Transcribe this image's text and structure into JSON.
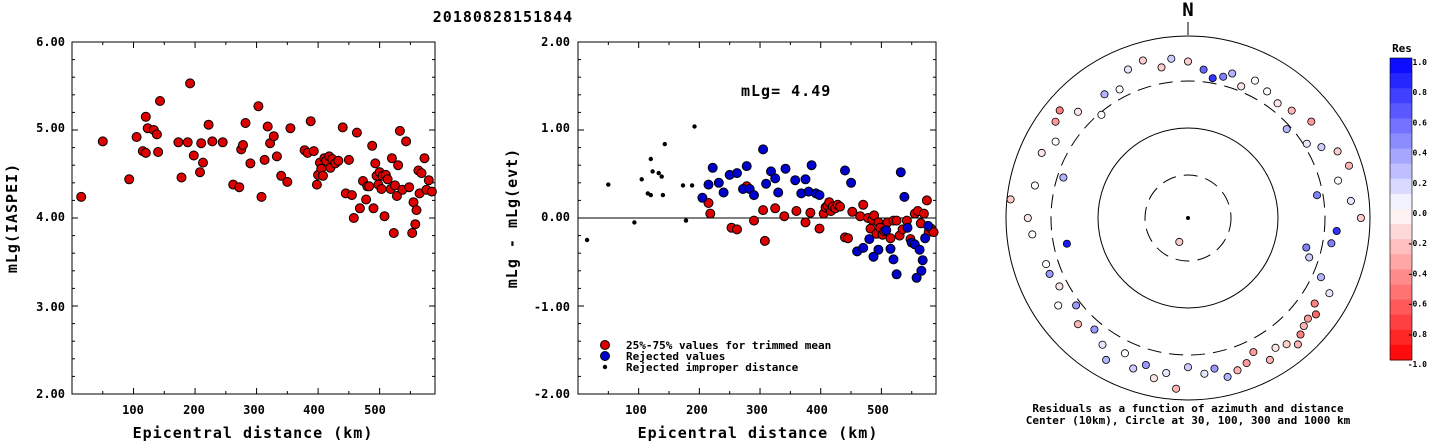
{
  "title": "20180828151844",
  "left_plot": {
    "ylabel": "mLg(IASPEI)",
    "xlabel": "Epicentral distance (km)",
    "yticks": [
      "6.00",
      "5.00",
      "4.00",
      "3.00",
      "2.00"
    ],
    "xticks": [
      "100",
      "200",
      "300",
      "400",
      "500"
    ]
  },
  "mid_plot": {
    "ylabel": "mLg - mLg(evt)",
    "xlabel": "Epicentral distance (km)",
    "yticks": [
      "2.00",
      "1.00",
      "0.00",
      "-1.00",
      "-2.00"
    ],
    "xticks": [
      "100",
      "200",
      "300",
      "400",
      "500"
    ],
    "annotation": "mLg= 4.49",
    "legend": [
      "25%-75% values for trimmed mean",
      "Rejected values",
      "Rejected improper distance"
    ]
  },
  "polar_plot": {
    "north_label": "N",
    "caption_line1": "Residuals as a function of azimuth and distance",
    "caption_line2": "Center (10km), Circle at 30, 100, 300 and 1000 km"
  },
  "colorbar": {
    "title": "Res",
    "labels": [
      "1.0",
      "0.8",
      "0.6",
      "0.4",
      "0.2",
      "0.0",
      "-0.2",
      "-0.4",
      "-0.6",
      "-0.8",
      "-1.0"
    ]
  },
  "colors": {
    "trimmed": "#dd0000",
    "rejected": "#0000cc",
    "improper": "#000000"
  },
  "chart_data": [
    {
      "type": "scatter",
      "ylabel": "mLg(IASPEI)",
      "xlabel": "Epicentral distance (km)",
      "xlim": [
        0,
        590
      ],
      "ylim": [
        2.0,
        6.0
      ],
      "series": [
        {
          "name": "25%-75% values for trimmed mean",
          "points": [
            [
              15,
              4.24
            ],
            [
              50,
              4.87
            ],
            [
              93,
              4.44
            ],
            [
              105,
              4.92
            ],
            [
              115,
              4.76
            ],
            [
              120,
              5.15
            ],
            [
              123,
              5.02
            ],
            [
              120,
              4.74
            ],
            [
              133,
              5.0
            ],
            [
              138,
              4.95
            ],
            [
              140,
              4.75
            ],
            [
              143,
              5.33
            ],
            [
              173,
              4.86
            ],
            [
              178,
              4.46
            ],
            [
              188,
              4.86
            ],
            [
              192,
              5.53
            ],
            [
              198,
              4.71
            ],
            [
              208,
              4.52
            ],
            [
              210,
              4.85
            ],
            [
              213,
              4.63
            ],
            [
              222,
              5.06
            ],
            [
              228,
              4.87
            ],
            [
              245,
              4.86
            ],
            [
              262,
              4.38
            ],
            [
              272,
              4.35
            ],
            [
              275,
              4.78
            ],
            [
              278,
              4.83
            ],
            [
              282,
              5.08
            ],
            [
              290,
              4.62
            ],
            [
              303,
              5.27
            ],
            [
              308,
              4.24
            ],
            [
              313,
              4.66
            ],
            [
              318,
              5.04
            ],
            [
              322,
              4.85
            ],
            [
              328,
              4.93
            ],
            [
              333,
              4.7
            ],
            [
              340,
              4.48
            ],
            [
              350,
              4.41
            ],
            [
              355,
              5.02
            ],
            [
              378,
              4.77
            ],
            [
              383,
              4.74
            ],
            [
              388,
              5.1
            ],
            [
              393,
              4.76
            ],
            [
              398,
              4.38
            ],
            [
              400,
              4.49
            ],
            [
              403,
              4.63
            ],
            [
              405,
              4.56
            ],
            [
              408,
              4.48
            ],
            [
              410,
              4.68
            ],
            [
              413,
              4.65
            ],
            [
              418,
              4.7
            ],
            [
              420,
              4.57
            ],
            [
              423,
              4.67
            ],
            [
              428,
              4.62
            ],
            [
              433,
              4.65
            ],
            [
              440,
              5.03
            ],
            [
              445,
              4.28
            ],
            [
              450,
              4.66
            ],
            [
              455,
              4.26
            ],
            [
              458,
              4.0
            ],
            [
              463,
              4.97
            ],
            [
              468,
              4.11
            ],
            [
              473,
              4.42
            ],
            [
              478,
              4.21
            ],
            [
              480,
              4.36
            ],
            [
              483,
              4.36
            ],
            [
              488,
              4.82
            ],
            [
              490,
              4.11
            ],
            [
              493,
              4.62
            ],
            [
              495,
              4.48
            ],
            [
              498,
              4.38
            ],
            [
              500,
              4.52
            ],
            [
              503,
              4.33
            ],
            [
              505,
              4.48
            ],
            [
              508,
              4.02
            ],
            [
              510,
              4.49
            ],
            [
              513,
              4.44
            ],
            [
              518,
              4.33
            ],
            [
              520,
              4.68
            ],
            [
              523,
              3.83
            ],
            [
              525,
              4.37
            ],
            [
              528,
              4.25
            ],
            [
              530,
              4.6
            ],
            [
              533,
              4.99
            ],
            [
              537,
              4.32
            ],
            [
              543,
              4.87
            ],
            [
              548,
              4.35
            ],
            [
              553,
              3.83
            ],
            [
              555,
              4.18
            ],
            [
              558,
              3.93
            ],
            [
              560,
              4.09
            ],
            [
              563,
              4.54
            ],
            [
              565,
              4.28
            ],
            [
              568,
              4.51
            ],
            [
              573,
              4.68
            ],
            [
              576,
              4.32
            ],
            [
              580,
              4.43
            ],
            [
              585,
              4.3
            ]
          ]
        }
      ]
    },
    {
      "type": "scatter",
      "ylabel": "mLg - mLg(evt)",
      "xlabel": "Epicentral distance (km)",
      "xlim": [
        0,
        590
      ],
      "ylim": [
        -2.0,
        2.0
      ],
      "series": [
        {
          "name": "25%-75% values for trimmed mean",
          "points": [
            [
              215,
              0.17
            ],
            [
              218,
              0.05
            ],
            [
              253,
              -0.11
            ],
            [
              262,
              -0.13
            ],
            [
              278,
              0.36
            ],
            [
              290,
              -0.03
            ],
            [
              305,
              0.09
            ],
            [
              308,
              -0.26
            ],
            [
              325,
              0.11
            ],
            [
              340,
              0.02
            ],
            [
              360,
              0.08
            ],
            [
              375,
              -0.05
            ],
            [
              383,
              0.06
            ],
            [
              398,
              -0.12
            ],
            [
              405,
              0.05
            ],
            [
              408,
              0.12
            ],
            [
              411,
              0.14
            ],
            [
              414,
              0.18
            ],
            [
              417,
              0.08
            ],
            [
              420,
              0.13
            ],
            [
              424,
              0.11
            ],
            [
              428,
              0.15
            ],
            [
              432,
              0.13
            ],
            [
              440,
              -0.22
            ],
            [
              445,
              -0.23
            ],
            [
              452,
              0.07
            ],
            [
              465,
              0.02
            ],
            [
              470,
              0.15
            ],
            [
              478,
              0.0
            ],
            [
              482,
              -0.12
            ],
            [
              485,
              -0.02
            ],
            [
              488,
              0.03
            ],
            [
              492,
              -0.18
            ],
            [
              495,
              -0.05
            ],
            [
              498,
              -0.11
            ],
            [
              502,
              -0.19
            ],
            [
              505,
              -0.15
            ],
            [
              510,
              -0.05
            ],
            [
              515,
              -0.23
            ],
            [
              520,
              -0.03
            ],
            [
              525,
              -0.03
            ],
            [
              530,
              -0.2
            ],
            [
              535,
              -0.13
            ],
            [
              542,
              -0.03
            ],
            [
              548,
              -0.24
            ],
            [
              555,
              0.05
            ],
            [
              560,
              0.08
            ],
            [
              565,
              -0.06
            ],
            [
              570,
              0.05
            ],
            [
              575,
              0.2
            ],
            [
              578,
              -0.16
            ],
            [
              582,
              -0.12
            ],
            [
              586,
              -0.16
            ]
          ]
        },
        {
          "name": "Rejected values",
          "points": [
            [
              205,
              0.23
            ],
            [
              215,
              0.38
            ],
            [
              222,
              0.57
            ],
            [
              232,
              0.4
            ],
            [
              240,
              0.29
            ],
            [
              250,
              0.49
            ],
            [
              262,
              0.51
            ],
            [
              272,
              0.33
            ],
            [
              278,
              0.59
            ],
            [
              283,
              0.33
            ],
            [
              290,
              0.26
            ],
            [
              305,
              0.78
            ],
            [
              310,
              0.39
            ],
            [
              318,
              0.53
            ],
            [
              325,
              0.45
            ],
            [
              330,
              0.29
            ],
            [
              342,
              0.56
            ],
            [
              358,
              0.43
            ],
            [
              368,
              0.28
            ],
            [
              375,
              0.44
            ],
            [
              380,
              0.3
            ],
            [
              385,
              0.6
            ],
            [
              392,
              0.28
            ],
            [
              398,
              0.26
            ],
            [
              440,
              0.54
            ],
            [
              450,
              0.4
            ],
            [
              460,
              -0.38
            ],
            [
              470,
              -0.34
            ],
            [
              480,
              -0.24
            ],
            [
              487,
              -0.44
            ],
            [
              495,
              -0.36
            ],
            [
              508,
              -0.14
            ],
            [
              515,
              -0.35
            ],
            [
              520,
              -0.47
            ],
            [
              525,
              -0.64
            ],
            [
              532,
              0.52
            ],
            [
              538,
              0.24
            ],
            [
              543,
              -0.11
            ],
            [
              550,
              -0.28
            ],
            [
              555,
              -0.3
            ],
            [
              558,
              -0.68
            ],
            [
              563,
              -0.36
            ],
            [
              566,
              -0.6
            ],
            [
              568,
              -0.48
            ],
            [
              572,
              -0.23
            ],
            [
              577,
              -0.09
            ]
          ]
        },
        {
          "name": "Rejected improper distance",
          "points": [
            [
              15,
              -0.25
            ],
            [
              50,
              0.38
            ],
            [
              93,
              -0.05
            ],
            [
              105,
              0.44
            ],
            [
              115,
              0.28
            ],
            [
              120,
              0.67
            ],
            [
              123,
              0.53
            ],
            [
              120,
              0.26
            ],
            [
              133,
              0.51
            ],
            [
              138,
              0.47
            ],
            [
              140,
              0.26
            ],
            [
              143,
              0.84
            ],
            [
              173,
              0.37
            ],
            [
              178,
              -0.03
            ],
            [
              188,
              0.37
            ],
            [
              192,
              1.04
            ]
          ]
        }
      ],
      "annotations": [
        "mLg= 4.49"
      ]
    }
  ]
}
